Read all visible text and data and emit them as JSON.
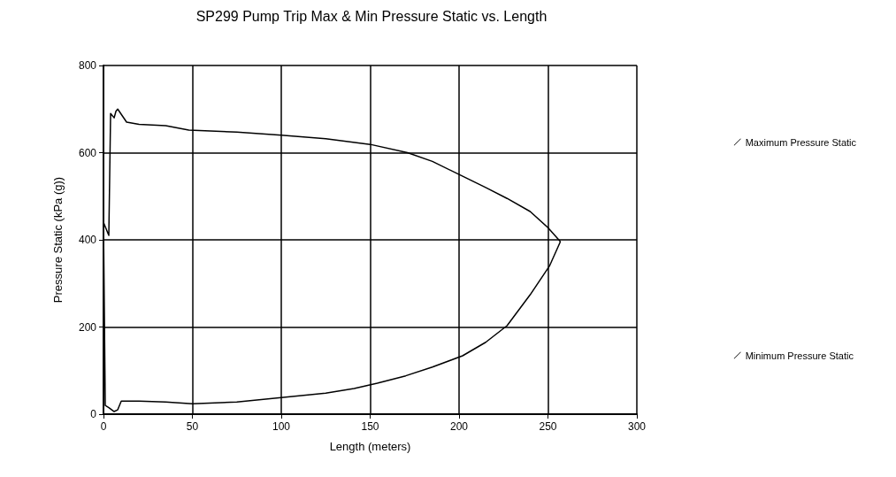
{
  "chart_data": {
    "type": "line",
    "title": "SP299 Pump Trip Max & Min Pressure Static vs. Length",
    "xlabel": "Length (meters)",
    "ylabel": "Pressure Static (kPa (g))",
    "xlim": [
      0,
      300
    ],
    "xticks": [
      0,
      50,
      100,
      150,
      200,
      250,
      300
    ],
    "ylim": [
      0,
      800
    ],
    "yticks": [
      0,
      200,
      400,
      600,
      800
    ],
    "grid": true,
    "legend": "right",
    "marker": "none",
    "line_style": "solid",
    "series": [
      {
        "name": "Maximum Pressure Static",
        "color": "#000000",
        "x": [
          0,
          3,
          4,
          6,
          7,
          8,
          13,
          20,
          35,
          48,
          75,
          100,
          125,
          150,
          171,
          185,
          200,
          215,
          227,
          240,
          250,
          257
        ],
        "values": [
          440,
          410,
          690,
          680,
          695,
          700,
          670,
          665,
          662,
          652,
          647,
          640,
          632,
          619,
          600,
          580,
          550,
          520,
          495,
          465,
          428,
          396
        ]
      },
      {
        "name": "Minimum Pressure Static",
        "color": "#000000",
        "x": [
          0,
          1,
          3,
          6,
          8,
          10,
          20,
          35,
          50,
          75,
          100,
          125,
          141,
          154,
          170,
          185,
          202,
          215,
          227,
          240,
          251,
          257
        ],
        "values": [
          440,
          20,
          15,
          6,
          10,
          30,
          30,
          28,
          24,
          28,
          38,
          48,
          59,
          71,
          88,
          108,
          134,
          165,
          203,
          274,
          341,
          396
        ]
      }
    ]
  }
}
